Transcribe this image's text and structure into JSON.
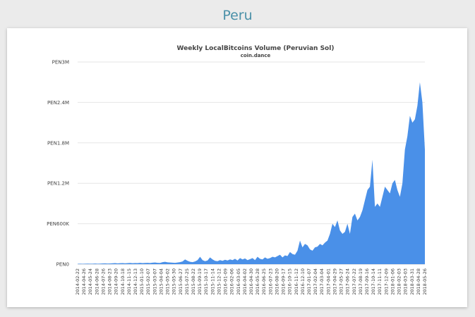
{
  "page": {
    "heading": "Peru"
  },
  "colors": {
    "area": "#4a90e8",
    "heading": "#4a90a8",
    "grid": "#e6e6e6"
  },
  "chart_data": {
    "type": "area",
    "title": "Weekly LocalBitcoins Volume (Peruvian Sol)",
    "subtitle": "coin.dance",
    "xlabel": "",
    "ylabel": "",
    "ylim": [
      0,
      3000000
    ],
    "yticks": [
      {
        "value": 0,
        "label": "PEN0"
      },
      {
        "value": 600000,
        "label": "PEN600K"
      },
      {
        "value": 1200000,
        "label": "PEN1.2M"
      },
      {
        "value": 1800000,
        "label": "PEN1.8M"
      },
      {
        "value": 2400000,
        "label": "PEN2.4M"
      },
      {
        "value": 3000000,
        "label": "PEN3M"
      }
    ],
    "grid": true,
    "legend": "none",
    "x_tick_labels": [
      "2014-02-22",
      "2014-04-26",
      "2014-05-24",
      "2014-06-28",
      "2014-07-26",
      "2014-08-23",
      "2014-09-20",
      "2014-10-18",
      "2014-11-15",
      "2014-12-13",
      "2015-01-10",
      "2015-02-07",
      "2015-03-07",
      "2015-04-04",
      "2015-05-02",
      "2015-05-30",
      "2015-06-27",
      "2015-07-25",
      "2015-08-22",
      "2015-09-19",
      "2015-10-17",
      "2015-11-14",
      "2015-12-12",
      "2016-01-09",
      "2016-02-06",
      "2016-03-05",
      "2016-04-02",
      "2016-04-30",
      "2016-05-28",
      "2016-06-25",
      "2016-07-23",
      "2016-08-20",
      "2016-09-17",
      "2016-10-15",
      "2016-11-12",
      "2016-12-10",
      "2017-01-07",
      "2017-02-04",
      "2017-03-04",
      "2017-04-01",
      "2017-04-29",
      "2017-05-27",
      "2017-06-24",
      "2017-07-22",
      "2017-08-19",
      "2017-09-16",
      "2017-10-14",
      "2017-11-11",
      "2017-12-09",
      "2018-01-06",
      "2018-02-03",
      "2018-03-03",
      "2018-03-31",
      "2018-04-28",
      "2018-05-26"
    ],
    "series": [
      {
        "values": [
          5000,
          6000,
          5000,
          7000,
          8000,
          6000,
          7000,
          9000,
          6000,
          8000,
          10000,
          12000,
          9000,
          11000,
          13000,
          15000,
          12000,
          14000,
          16000,
          13000,
          15000,
          18000,
          14000,
          17000,
          16000,
          19000,
          15000,
          18000,
          20000,
          17000,
          22000,
          25000,
          20000,
          18000,
          30000,
          35000,
          28000,
          25000,
          22000,
          20000,
          25000,
          30000,
          40000,
          70000,
          50000,
          35000,
          30000,
          40000,
          60000,
          110000,
          60000,
          45000,
          55000,
          100000,
          70000,
          50000,
          45000,
          60000,
          50000,
          65000,
          55000,
          70000,
          60000,
          80000,
          55000,
          90000,
          70000,
          85000,
          60000,
          75000,
          90000,
          60000,
          110000,
          80000,
          70000,
          100000,
          80000,
          90000,
          110000,
          100000,
          120000,
          140000,
          100000,
          130000,
          120000,
          180000,
          150000,
          140000,
          200000,
          350000,
          250000,
          300000,
          280000,
          220000,
          200000,
          250000,
          260000,
          300000,
          280000,
          320000,
          350000,
          450000,
          600000,
          550000,
          650000,
          500000,
          450000,
          480000,
          600000,
          450000,
          700000,
          750000,
          650000,
          700000,
          800000,
          950000,
          1100000,
          1150000,
          1550000,
          850000,
          900000,
          850000,
          1000000,
          1150000,
          1100000,
          1050000,
          1200000,
          1250000,
          1100000,
          1000000,
          1200000,
          1700000,
          1900000,
          2200000,
          2100000,
          2150000,
          2350000,
          2700000,
          2400000,
          1700000
        ]
      }
    ]
  }
}
